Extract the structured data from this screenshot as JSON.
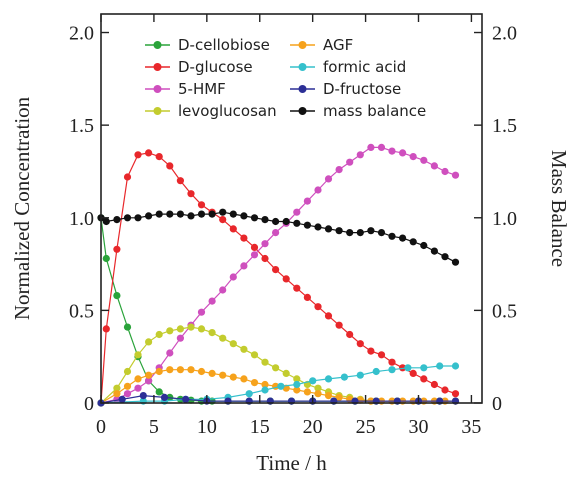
{
  "chart_data": {
    "type": "scatter",
    "xlabel": "Time / h",
    "ylabel": "Normalized Concentration",
    "y2label": "Mass Balance",
    "xlim": [
      0,
      36
    ],
    "ylim": [
      0,
      2.1
    ],
    "y2lim": [
      0,
      2.1
    ],
    "xticks": [
      0,
      5,
      10,
      15,
      20,
      25,
      30,
      35
    ],
    "yticks": [
      0,
      0.5,
      1.0,
      1.5,
      2.0
    ],
    "ytick_labels": [
      "0",
      "0.5",
      "1.0",
      "1.5",
      "2.0"
    ],
    "legend_position": "top-center",
    "legend_columns": 2,
    "series": [
      {
        "name": "D-cellobiose",
        "color": "#2aa33a",
        "x": [
          0,
          0.5,
          1.5,
          2.5,
          3.5,
          4.5,
          5.5,
          6.5,
          7.5,
          8.5,
          9.5,
          10.5,
          12,
          14,
          16,
          18,
          20,
          22,
          24,
          26,
          28,
          30,
          32,
          33.5
        ],
        "y": [
          1.0,
          0.78,
          0.58,
          0.41,
          0.25,
          0.12,
          0.06,
          0.03,
          0.02,
          0.015,
          0.01,
          0.01,
          0.01,
          0.01,
          0.01,
          0.01,
          0.01,
          0.01,
          0.01,
          0.01,
          0.01,
          0.01,
          0.01,
          0.01
        ]
      },
      {
        "name": "D-glucose",
        "color": "#e8272b",
        "x": [
          0,
          0.5,
          1.5,
          2.5,
          3.5,
          4.5,
          5.5,
          6.5,
          7.5,
          8.5,
          9.5,
          10.5,
          11.5,
          12.5,
          13.5,
          14.5,
          15.5,
          16.5,
          17.5,
          18.5,
          19.5,
          20.5,
          21.5,
          22.5,
          23.5,
          24.5,
          25.5,
          26.5,
          27.5,
          28.5,
          29.5,
          30.5,
          31.5,
          32.5,
          33.5
        ],
        "y": [
          0.0,
          0.4,
          0.83,
          1.22,
          1.34,
          1.35,
          1.33,
          1.28,
          1.2,
          1.13,
          1.07,
          1.03,
          0.99,
          0.94,
          0.89,
          0.84,
          0.78,
          0.72,
          0.67,
          0.62,
          0.57,
          0.52,
          0.47,
          0.42,
          0.37,
          0.32,
          0.28,
          0.26,
          0.22,
          0.19,
          0.16,
          0.13,
          0.1,
          0.07,
          0.05
        ]
      },
      {
        "name": "5-HMF",
        "color": "#cf4fbe",
        "x": [
          0,
          1.5,
          2.5,
          3.5,
          4.5,
          5.5,
          6.5,
          7.5,
          8.5,
          9.5,
          10.5,
          11.5,
          12.5,
          13.5,
          14.5,
          15.5,
          16.5,
          17.5,
          18.5,
          19.5,
          20.5,
          21.5,
          22.5,
          23.5,
          24.5,
          25.5,
          26.5,
          27.5,
          28.5,
          29.5,
          30.5,
          31.5,
          32.5,
          33.5
        ],
        "y": [
          0.0,
          0.02,
          0.05,
          0.08,
          0.12,
          0.19,
          0.27,
          0.35,
          0.42,
          0.49,
          0.55,
          0.61,
          0.68,
          0.74,
          0.8,
          0.86,
          0.92,
          0.97,
          1.03,
          1.09,
          1.15,
          1.21,
          1.26,
          1.3,
          1.34,
          1.38,
          1.38,
          1.36,
          1.35,
          1.33,
          1.31,
          1.28,
          1.25,
          1.23
        ]
      },
      {
        "name": "levoglucosan",
        "color": "#c3cc2e",
        "x": [
          0,
          1.5,
          2.5,
          3.5,
          4.5,
          5.5,
          6.5,
          7.5,
          8.5,
          9.5,
          10.5,
          11.5,
          12.5,
          13.5,
          14.5,
          15.5,
          16.5,
          17.5,
          18.5,
          19.5,
          20.5,
          21.5,
          22.5,
          23.5,
          24.5,
          25.5
        ],
        "y": [
          0.0,
          0.08,
          0.17,
          0.26,
          0.33,
          0.37,
          0.39,
          0.4,
          0.41,
          0.4,
          0.38,
          0.35,
          0.32,
          0.29,
          0.26,
          0.22,
          0.19,
          0.16,
          0.13,
          0.1,
          0.08,
          0.06,
          0.04,
          0.03,
          0.02,
          0.01
        ]
      },
      {
        "name": "AGF",
        "color": "#f6a21c",
        "x": [
          0,
          1.5,
          2.5,
          3.5,
          4.5,
          5.5,
          6.5,
          7.5,
          8.5,
          9.5,
          10.5,
          11.5,
          12.5,
          13.5,
          14.5,
          15.5,
          16.5,
          17.5,
          18.5,
          19.5,
          20.5,
          21.5,
          22.5,
          23.5,
          24.5,
          25.5,
          26.5,
          27.5,
          28.5,
          29.5,
          30.5,
          31.5,
          32.5,
          33.5
        ],
        "y": [
          0.0,
          0.05,
          0.09,
          0.13,
          0.15,
          0.17,
          0.18,
          0.18,
          0.18,
          0.17,
          0.16,
          0.15,
          0.14,
          0.13,
          0.11,
          0.1,
          0.09,
          0.08,
          0.07,
          0.06,
          0.05,
          0.04,
          0.03,
          0.02,
          0.015,
          0.01,
          0.01,
          0.01,
          0.01,
          0.01,
          0.01,
          0.01,
          0.01,
          0.01
        ]
      },
      {
        "name": "formic acid",
        "color": "#35c0cc",
        "x": [
          0,
          4,
          6,
          8,
          10,
          12,
          14,
          15.5,
          17,
          18.5,
          20,
          21.5,
          23,
          24.5,
          26,
          27.5,
          29,
          30.5,
          32,
          33.5
        ],
        "y": [
          0.0,
          0.01,
          0.01,
          0.02,
          0.02,
          0.03,
          0.05,
          0.07,
          0.09,
          0.1,
          0.12,
          0.13,
          0.14,
          0.15,
          0.17,
          0.18,
          0.19,
          0.19,
          0.2,
          0.2
        ]
      },
      {
        "name": "D-fructose",
        "color": "#2c2f96",
        "x": [
          0,
          2,
          4,
          6,
          8,
          10,
          12,
          14,
          16,
          18,
          20,
          22,
          24,
          26,
          28,
          30,
          32,
          33.5
        ],
        "y": [
          0.0,
          0.02,
          0.04,
          0.03,
          0.02,
          0.01,
          0.01,
          0.01,
          0.01,
          0.01,
          0.01,
          0.01,
          0.01,
          0.01,
          0.01,
          0.01,
          0.01,
          0.01
        ]
      },
      {
        "name": "mass balance",
        "color": "#111111",
        "x": [
          0,
          0.5,
          1.5,
          2.5,
          3.5,
          4.5,
          5.5,
          6.5,
          7.5,
          8.5,
          9.5,
          10.5,
          11.5,
          12.5,
          13.5,
          14.5,
          15.5,
          16.5,
          17.5,
          18.5,
          19.5,
          20.5,
          21.5,
          22.5,
          23.5,
          24.5,
          25.5,
          26.5,
          27.5,
          28.5,
          29.5,
          30.5,
          31.5,
          32.5,
          33.5
        ],
        "y": [
          1.0,
          0.98,
          0.99,
          1.0,
          1.0,
          1.01,
          1.02,
          1.02,
          1.02,
          1.01,
          1.02,
          1.02,
          1.03,
          1.02,
          1.01,
          1.0,
          0.99,
          0.98,
          0.98,
          0.97,
          0.96,
          0.95,
          0.94,
          0.93,
          0.92,
          0.92,
          0.93,
          0.92,
          0.9,
          0.89,
          0.87,
          0.85,
          0.82,
          0.79,
          0.76
        ]
      }
    ]
  }
}
